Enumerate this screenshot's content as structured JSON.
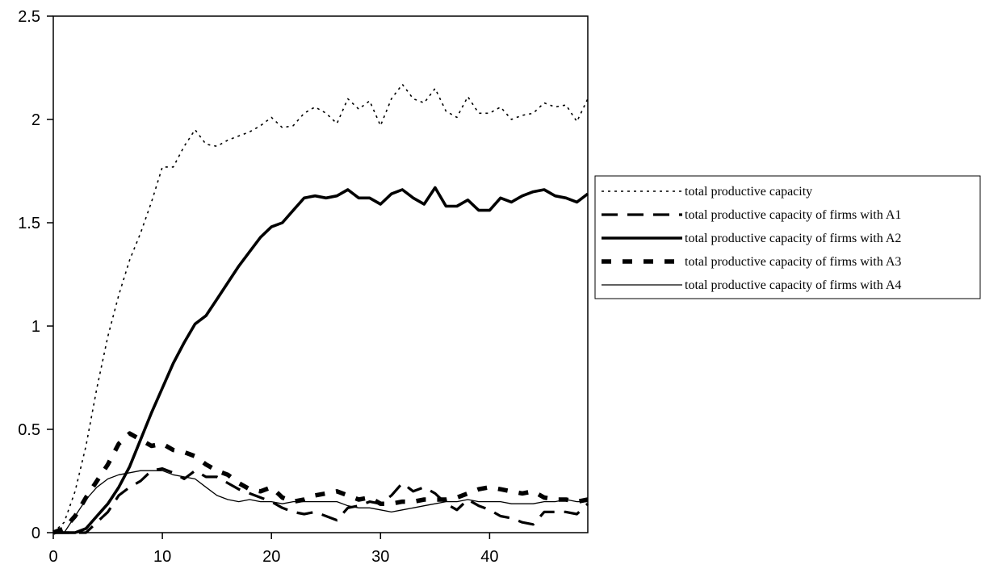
{
  "chart_data": {
    "type": "line",
    "title": "",
    "xlabel": "",
    "ylabel": "",
    "xlim": [
      0,
      49
    ],
    "ylim": [
      0,
      2.5
    ],
    "x_ticks": [
      0,
      10,
      20,
      30,
      40
    ],
    "y_ticks": [
      0,
      0.5,
      1,
      1.5,
      2,
      2.5
    ],
    "y_tick_labels": [
      "0",
      "0.5",
      "1",
      "1.5",
      "2",
      "2.5"
    ],
    "grid": false,
    "legend_placement": "right",
    "series": [
      {
        "name": "total productive capacity",
        "style": "dotted",
        "values": [
          0,
          0.05,
          0.2,
          0.42,
          0.7,
          0.95,
          1.15,
          1.32,
          1.45,
          1.6,
          1.77,
          1.77,
          1.87,
          1.95,
          1.88,
          1.87,
          1.9,
          1.92,
          1.94,
          1.97,
          2.01,
          1.96,
          1.97,
          2.03,
          2.06,
          2.03,
          1.98,
          2.1,
          2.05,
          2.09,
          1.97,
          2.1,
          2.17,
          2.1,
          2.08,
          2.15,
          2.04,
          2.01,
          2.11,
          2.03,
          2.03,
          2.06,
          2.0,
          2.02,
          2.03,
          2.08,
          2.06,
          2.07,
          1.99,
          2.1
        ]
      },
      {
        "name": "total productive capacity of firms with A1",
        "style": "dashed",
        "values": [
          0,
          0,
          0,
          0,
          0.05,
          0.1,
          0.18,
          0.22,
          0.25,
          0.3,
          0.31,
          0.29,
          0.26,
          0.3,
          0.27,
          0.27,
          0.24,
          0.21,
          0.19,
          0.17,
          0.15,
          0.12,
          0.1,
          0.09,
          0.1,
          0.08,
          0.06,
          0.12,
          0.13,
          0.15,
          0.14,
          0.18,
          0.24,
          0.2,
          0.22,
          0.19,
          0.14,
          0.11,
          0.16,
          0.13,
          0.11,
          0.08,
          0.07,
          0.05,
          0.04,
          0.1,
          0.1,
          0.1,
          0.09,
          0.14
        ]
      },
      {
        "name": "total productive capacity of firms with A2",
        "style": "solid-thick",
        "values": [
          0,
          0,
          0,
          0.02,
          0.08,
          0.14,
          0.22,
          0.32,
          0.45,
          0.58,
          0.7,
          0.82,
          0.92,
          1.01,
          1.05,
          1.13,
          1.21,
          1.29,
          1.36,
          1.43,
          1.48,
          1.5,
          1.56,
          1.62,
          1.63,
          1.62,
          1.63,
          1.66,
          1.62,
          1.62,
          1.59,
          1.64,
          1.66,
          1.62,
          1.59,
          1.67,
          1.58,
          1.58,
          1.61,
          1.56,
          1.56,
          1.62,
          1.6,
          1.63,
          1.65,
          1.66,
          1.63,
          1.62,
          1.6,
          1.64
        ]
      },
      {
        "name": "total productive capacity of firms with A3",
        "style": "dashed-thick",
        "values": [
          0,
          0.02,
          0.08,
          0.17,
          0.25,
          0.33,
          0.43,
          0.48,
          0.45,
          0.42,
          0.43,
          0.4,
          0.39,
          0.37,
          0.33,
          0.3,
          0.28,
          0.24,
          0.21,
          0.2,
          0.22,
          0.17,
          0.15,
          0.16,
          0.18,
          0.19,
          0.2,
          0.18,
          0.16,
          0.17,
          0.14,
          0.14,
          0.15,
          0.15,
          0.16,
          0.16,
          0.16,
          0.17,
          0.19,
          0.21,
          0.22,
          0.21,
          0.2,
          0.19,
          0.2,
          0.17,
          0.16,
          0.16,
          0.15,
          0.16
        ]
      },
      {
        "name": "total productive capacity of firms with A4",
        "style": "solid-thin",
        "values": [
          0,
          0,
          0.08,
          0.16,
          0.22,
          0.26,
          0.28,
          0.29,
          0.3,
          0.3,
          0.3,
          0.28,
          0.27,
          0.26,
          0.22,
          0.18,
          0.16,
          0.15,
          0.16,
          0.15,
          0.15,
          0.14,
          0.15,
          0.15,
          0.15,
          0.15,
          0.15,
          0.13,
          0.12,
          0.12,
          0.11,
          0.1,
          0.11,
          0.12,
          0.13,
          0.14,
          0.15,
          0.15,
          0.16,
          0.15,
          0.15,
          0.15,
          0.14,
          0.14,
          0.14,
          0.15,
          0.15,
          0.16,
          0.15,
          0.15
        ]
      }
    ]
  }
}
